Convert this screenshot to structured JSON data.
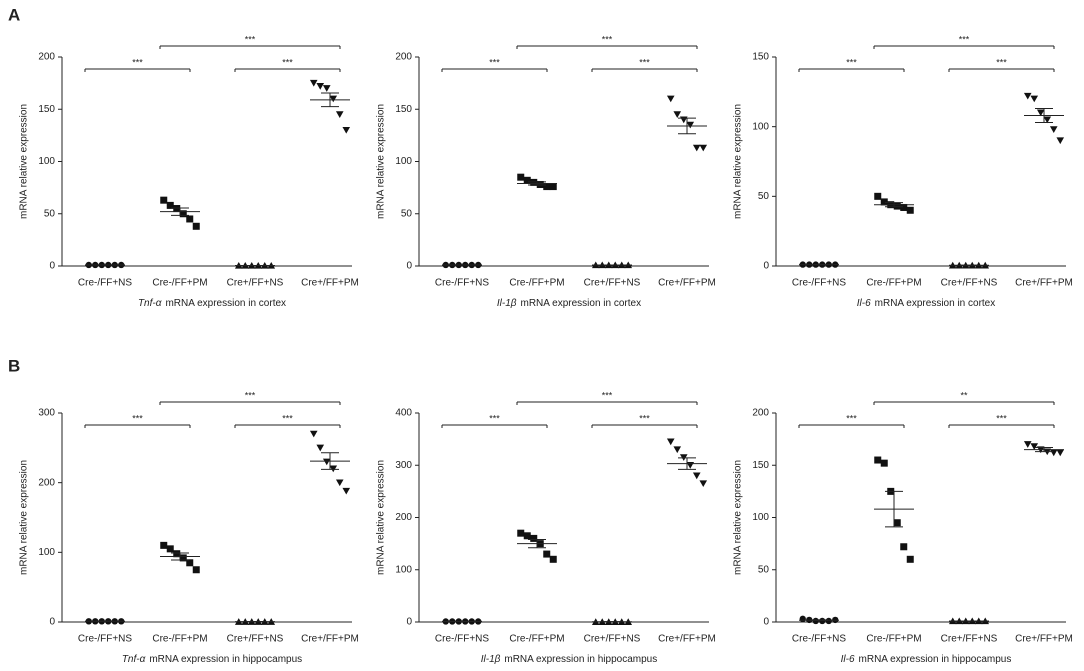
{
  "panel_labels": [
    "A",
    "B"
  ],
  "chart_data": [
    {
      "type": "dotplot",
      "ylabel": "mRNA relative expression",
      "gene": "Tnf-α",
      "xlabel": "mRNA expression in cortex",
      "categories": [
        "Cre-/FF+NS",
        "Cre-/FF+PM",
        "Cre+/FF+NS",
        "Cre+/FF+PM"
      ],
      "markers": [
        "circle",
        "square",
        "triangle-up",
        "triangle-down"
      ],
      "values": [
        [
          1,
          1,
          1,
          1,
          1,
          1
        ],
        [
          63,
          58,
          55,
          50,
          45,
          38
        ],
        [
          0.5,
          0.5,
          0.5,
          0.5,
          0.5,
          0.5
        ],
        [
          175,
          172,
          170,
          160,
          145,
          130
        ]
      ],
      "means": [
        1,
        52,
        0.5,
        159
      ],
      "sems": [
        0,
        3.5,
        0,
        6.5
      ],
      "ylim": [
        0,
        200
      ],
      "yticks": [
        0,
        50,
        100,
        150,
        200
      ],
      "comparisons": [
        {
          "from": 0,
          "to": 1,
          "label": "***"
        },
        {
          "from": 1,
          "to": 3,
          "label": "***"
        },
        {
          "from": 2,
          "to": 3,
          "label": "***"
        }
      ]
    },
    {
      "type": "dotplot",
      "ylabel": "mRNA relative expression",
      "gene": "Il-1β",
      "xlabel": "mRNA expression in cortex",
      "categories": [
        "Cre-/FF+NS",
        "Cre-/FF+PM",
        "Cre+/FF+NS",
        "Cre+/FF+PM"
      ],
      "markers": [
        "circle",
        "square",
        "triangle-up",
        "triangle-down"
      ],
      "values": [
        [
          1,
          1,
          1,
          1,
          1,
          1
        ],
        [
          85,
          82,
          80,
          78,
          76,
          76
        ],
        [
          1,
          1,
          1,
          1,
          1,
          1
        ],
        [
          160,
          145,
          140,
          135,
          113,
          113
        ]
      ],
      "means": [
        1,
        79,
        1,
        134
      ],
      "sems": [
        0,
        1.5,
        0,
        7.5
      ],
      "ylim": [
        0,
        200
      ],
      "yticks": [
        0,
        50,
        100,
        150,
        200
      ],
      "comparisons": [
        {
          "from": 0,
          "to": 1,
          "label": "***"
        },
        {
          "from": 1,
          "to": 3,
          "label": "***"
        },
        {
          "from": 2,
          "to": 3,
          "label": "***"
        }
      ]
    },
    {
      "type": "dotplot",
      "ylabel": "mRNA relative expression",
      "gene": "Il-6",
      "xlabel": "mRNA expression in cortex",
      "categories": [
        "Cre-/FF+NS",
        "Cre-/FF+PM",
        "Cre+/FF+NS",
        "Cre+/FF+PM"
      ],
      "markers": [
        "circle",
        "square",
        "triangle-up",
        "triangle-down"
      ],
      "values": [
        [
          1,
          1,
          1,
          1,
          1,
          1
        ],
        [
          50,
          46,
          44,
          43,
          42,
          40
        ],
        [
          0.5,
          0.5,
          0.5,
          0.5,
          0.5,
          0.5
        ],
        [
          122,
          120,
          110,
          105,
          98,
          90
        ]
      ],
      "means": [
        1,
        44,
        0.5,
        108
      ],
      "sems": [
        0,
        1.5,
        0,
        5
      ],
      "ylim": [
        0,
        150
      ],
      "yticks": [
        0,
        50,
        100,
        150
      ],
      "comparisons": [
        {
          "from": 0,
          "to": 1,
          "label": "***"
        },
        {
          "from": 1,
          "to": 3,
          "label": "***"
        },
        {
          "from": 2,
          "to": 3,
          "label": "***"
        }
      ]
    },
    {
      "type": "dotplot",
      "ylabel": "mRNA relative expression",
      "gene": "Tnf-α",
      "xlabel": "mRNA expression in hippocampus",
      "categories": [
        "Cre-/FF+NS",
        "Cre-/FF+PM",
        "Cre+/FF+NS",
        "Cre+/FF+PM"
      ],
      "markers": [
        "circle",
        "square",
        "triangle-up",
        "triangle-down"
      ],
      "values": [
        [
          1,
          1,
          1,
          1,
          1,
          1
        ],
        [
          110,
          105,
          98,
          92,
          85,
          75
        ],
        [
          0.5,
          0.5,
          0.5,
          0.5,
          0.5,
          0.5
        ],
        [
          270,
          250,
          230,
          220,
          200,
          188
        ]
      ],
      "means": [
        1,
        94,
        0.5,
        231
      ],
      "sems": [
        0,
        5,
        0,
        12
      ],
      "ylim": [
        0,
        300
      ],
      "yticks": [
        0,
        100,
        200,
        300
      ],
      "comparisons": [
        {
          "from": 0,
          "to": 1,
          "label": "***"
        },
        {
          "from": 1,
          "to": 3,
          "label": "***"
        },
        {
          "from": 2,
          "to": 3,
          "label": "***"
        }
      ]
    },
    {
      "type": "dotplot",
      "ylabel": "mRNA relative expression",
      "gene": "Il-1β",
      "xlabel": "mRNA expression in hippocampus",
      "categories": [
        "Cre-/FF+NS",
        "Cre-/FF+PM",
        "Cre+/FF+NS",
        "Cre+/FF+PM"
      ],
      "markers": [
        "circle",
        "square",
        "triangle-up",
        "triangle-down"
      ],
      "values": [
        [
          1,
          1,
          1,
          1,
          1,
          1
        ],
        [
          170,
          165,
          160,
          150,
          130,
          120
        ],
        [
          0.5,
          0.5,
          0.5,
          0.5,
          0.5,
          0.5
        ],
        [
          345,
          330,
          315,
          300,
          280,
          265
        ]
      ],
      "means": [
        1,
        150,
        0.5,
        303
      ],
      "sems": [
        0,
        8,
        0,
        11
      ],
      "ylim": [
        0,
        400
      ],
      "yticks": [
        0,
        100,
        200,
        300,
        400
      ],
      "comparisons": [
        {
          "from": 0,
          "to": 1,
          "label": "***"
        },
        {
          "from": 1,
          "to": 3,
          "label": "***"
        },
        {
          "from": 2,
          "to": 3,
          "label": "***"
        }
      ]
    },
    {
      "type": "dotplot",
      "ylabel": "mRNA relative expression",
      "gene": "Il-6",
      "xlabel": "mRNA expression in hippocampus",
      "categories": [
        "Cre-/FF+NS",
        "Cre-/FF+PM",
        "Cre+/FF+NS",
        "Cre+/FF+PM"
      ],
      "markers": [
        "circle",
        "square",
        "triangle-up",
        "triangle-down"
      ],
      "values": [
        [
          3,
          2,
          1,
          1,
          1,
          2
        ],
        [
          155,
          152,
          125,
          95,
          72,
          60
        ],
        [
          1,
          1,
          1,
          1,
          1,
          1
        ],
        [
          170,
          168,
          165,
          163,
          162,
          162
        ]
      ],
      "means": [
        1.7,
        108,
        1,
        165
      ],
      "sems": [
        0.3,
        17,
        0,
        2
      ],
      "ylim": [
        0,
        200
      ],
      "yticks": [
        0,
        50,
        100,
        150,
        200
      ],
      "comparisons": [
        {
          "from": 0,
          "to": 1,
          "label": "***"
        },
        {
          "from": 1,
          "to": 3,
          "label": "**"
        },
        {
          "from": 2,
          "to": 3,
          "label": "***"
        }
      ]
    }
  ]
}
